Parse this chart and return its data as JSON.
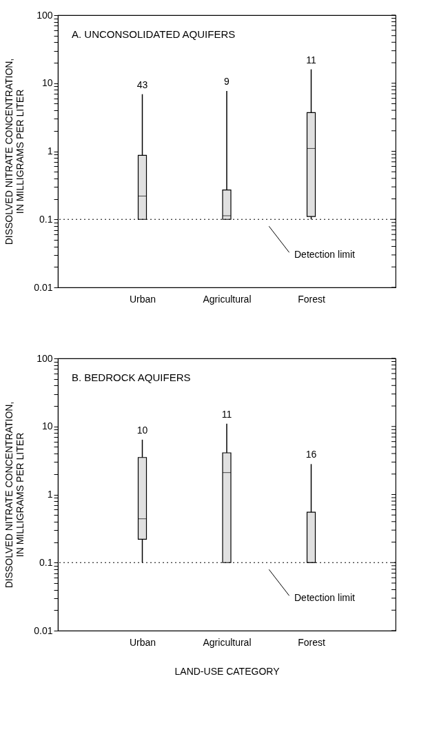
{
  "chart_data": [
    {
      "type": "box",
      "title": "A. UNCONSOLIDATED AQUIFERS",
      "ylabel": "DISSOLVED NITRATE CONCENTRATION, IN MILLIGRAMS PER LITER",
      "categories": [
        "Urban",
        "Agricultural",
        "Forest"
      ],
      "series": [
        {
          "color": "#e0e0e0",
          "boxes": [
            {
              "low": 0.1,
              "q1": 0.1,
              "median": 0.22,
              "q3": 0.87,
              "high": 6.9
            },
            {
              "low": 0.1,
              "q1": 0.1,
              "median": 0.113,
              "q3": 0.27,
              "high": 7.7
            },
            {
              "low": 0.1,
              "q1": 0.11,
              "median": 1.1,
              "q3": 3.7,
              "high": 16
            }
          ]
        }
      ],
      "log": true,
      "ylim": [
        0.01,
        100
      ],
      "yticks": [
        0.01,
        {
          "value": 0.02,
          "label": null
        },
        {
          "value": 0.03,
          "label": null
        },
        {
          "value": 0.04,
          "label": null
        },
        {
          "value": 0.05,
          "label": null
        },
        {
          "value": 0.06,
          "label": null
        },
        {
          "value": 0.07,
          "label": null
        },
        {
          "value": 0.08,
          "label": null
        },
        {
          "value": 0.09,
          "label": null
        },
        0.1,
        {
          "value": 0.2,
          "label": null
        },
        {
          "value": 0.3,
          "label": null
        },
        {
          "value": 0.4,
          "label": null
        },
        {
          "value": 0.5,
          "label": null
        },
        {
          "value": 0.6,
          "label": null
        },
        {
          "value": 0.7,
          "label": null
        },
        {
          "value": 0.8,
          "label": null
        },
        {
          "value": 0.9,
          "label": null
        },
        1,
        {
          "value": 2,
          "label": null
        },
        {
          "value": 3,
          "label": null
        },
        {
          "value": 4,
          "label": null
        },
        {
          "value": 5,
          "label": null
        },
        {
          "value": 6,
          "label": null
        },
        {
          "value": 7,
          "label": null
        },
        {
          "value": 8,
          "label": null
        },
        {
          "value": 9,
          "label": null
        },
        10,
        {
          "value": 20,
          "label": null
        },
        {
          "value": 30,
          "label": null
        },
        {
          "value": 40,
          "label": null
        },
        {
          "value": 50,
          "label": null
        },
        {
          "value": 60,
          "label": null
        },
        {
          "value": 70,
          "label": null
        },
        {
          "value": 80,
          "label": null
        },
        {
          "value": 90,
          "label": null
        },
        100
      ],
      "ref_lines": [
        {
          "axis": "y",
          "value": 0.1,
          "label": "Detection limit",
          "line_style": "dotted"
        }
      ],
      "annotations": [
        "43",
        "9",
        "11"
      ]
    },
    {
      "type": "box",
      "title": "B. BEDROCK AQUIFERS",
      "ylabel": "DISSOLVED NITRATE CONCENTRATION, IN MILLIGRAMS PER LITER",
      "xlabel": "LAND-USE CATEGORY",
      "categories": [
        "Urban",
        "Agricultural",
        "Forest"
      ],
      "series": [
        {
          "color": "#e0e0e0",
          "boxes": [
            {
              "low": 0.1,
              "q1": 0.22,
              "median": 0.44,
              "q3": 3.5,
              "high": 6.4
            },
            {
              "low": 0.1,
              "q1": 0.1,
              "median": 2.1,
              "q3": 4.1,
              "high": 11
            },
            {
              "low": 0.1,
              "q1": 0.1,
              "median": 0.1,
              "q3": 0.55,
              "high": 2.8
            }
          ]
        }
      ],
      "log": true,
      "ylim": [
        0.01,
        100
      ],
      "yticks": [
        0.01,
        {
          "value": 0.02,
          "label": null
        },
        {
          "value": 0.03,
          "label": null
        },
        {
          "value": 0.04,
          "label": null
        },
        {
          "value": 0.05,
          "label": null
        },
        {
          "value": 0.06,
          "label": null
        },
        {
          "value": 0.07,
          "label": null
        },
        {
          "value": 0.08,
          "label": null
        },
        {
          "value": 0.09,
          "label": null
        },
        0.1,
        {
          "value": 0.2,
          "label": null
        },
        {
          "value": 0.3,
          "label": null
        },
        {
          "value": 0.4,
          "label": null
        },
        {
          "value": 0.5,
          "label": null
        },
        {
          "value": 0.6,
          "label": null
        },
        {
          "value": 0.7,
          "label": null
        },
        {
          "value": 0.8,
          "label": null
        },
        {
          "value": 0.9,
          "label": null
        },
        1,
        {
          "value": 2,
          "label": null
        },
        {
          "value": 3,
          "label": null
        },
        {
          "value": 4,
          "label": null
        },
        {
          "value": 5,
          "label": null
        },
        {
          "value": 6,
          "label": null
        },
        {
          "value": 7,
          "label": null
        },
        {
          "value": 8,
          "label": null
        },
        {
          "value": 9,
          "label": null
        },
        10,
        {
          "value": 20,
          "label": null
        },
        {
          "value": 30,
          "label": null
        },
        {
          "value": 40,
          "label": null
        },
        {
          "value": 50,
          "label": null
        },
        {
          "value": 60,
          "label": null
        },
        {
          "value": 70,
          "label": null
        },
        {
          "value": 80,
          "label": null
        },
        {
          "value": 90,
          "label": null
        },
        100
      ],
      "ref_lines": [
        {
          "axis": "y",
          "value": 0.1,
          "label": "Detection limit",
          "line_style": "dotted"
        }
      ],
      "annotations": [
        "10",
        "11",
        "16"
      ]
    }
  ]
}
